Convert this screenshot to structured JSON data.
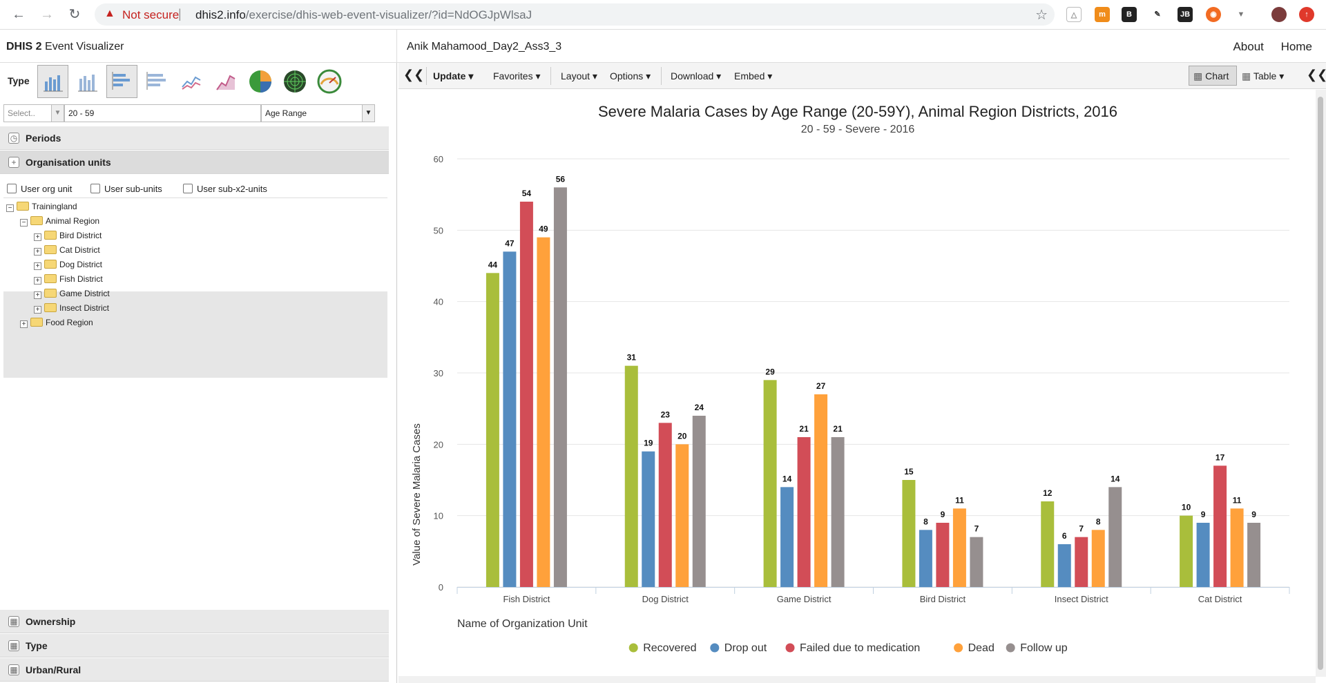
{
  "browser": {
    "not_secure": "Not secure",
    "url_host": "dhis2.info",
    "url_path": "/exercise/dhis-web-event-visualizer/?id=NdOGJpWlsaJ"
  },
  "app": {
    "brand": "DHIS 2",
    "title": "Event Visualizer",
    "favorite_name": "Anik Mahamood_Day2_Ass3_3",
    "about": "About",
    "home": "Home"
  },
  "left": {
    "type_label": "Type",
    "filter_select_placeholder": "Select..",
    "filter_value": "20 - 59",
    "filter_dimension": "Age Range",
    "periods": "Periods",
    "org_units": "Organisation units",
    "checks": [
      "User org unit",
      "User sub-units",
      "User sub-x2-units"
    ],
    "tree": {
      "root": "Trainingland",
      "region": "Animal Region",
      "districts": [
        "Bird District",
        "Cat District",
        "Dog District",
        "Fish District",
        "Game District",
        "Insect District"
      ],
      "other_region": "Food Region"
    },
    "bottom_sections": [
      "Ownership",
      "Type",
      "Urban/Rural"
    ]
  },
  "toolbar": {
    "update": "Update",
    "favorites": "Favorites",
    "layout": "Layout",
    "options": "Options",
    "download": "Download",
    "embed": "Embed",
    "chart": "Chart",
    "table": "Table"
  },
  "chart_data": {
    "type": "bar",
    "title": "Severe Malaria Cases by Age Range (20-59Y), Animal Region Districts, 2016",
    "subtitle": "20 - 59 - Severe - 2016",
    "xlabel": "Name of Organization Unit",
    "ylabel": "Value of Severe Malaria Cases",
    "ylim": [
      0,
      60
    ],
    "yticks": [
      0,
      10,
      20,
      30,
      40,
      50,
      60
    ],
    "grid": true,
    "legend_position": "bottom",
    "categories": [
      "Fish District",
      "Dog District",
      "Game District",
      "Bird District",
      "Insect District",
      "Cat District"
    ],
    "series": [
      {
        "name": "Recovered",
        "color": "#a9be3b",
        "values": [
          44,
          31,
          29,
          15,
          12,
          10
        ]
      },
      {
        "name": "Drop out",
        "color": "#558cc0",
        "values": [
          47,
          19,
          14,
          8,
          6,
          9
        ]
      },
      {
        "name": "Failed due to medication",
        "color": "#d24d57",
        "values": [
          54,
          23,
          21,
          9,
          7,
          17
        ]
      },
      {
        "name": "Dead",
        "color": "#ffa13b",
        "values": [
          49,
          20,
          27,
          11,
          8,
          11
        ]
      },
      {
        "name": "Follow up",
        "color": "#968f8f",
        "values": [
          56,
          24,
          21,
          7,
          14,
          9
        ]
      }
    ]
  }
}
